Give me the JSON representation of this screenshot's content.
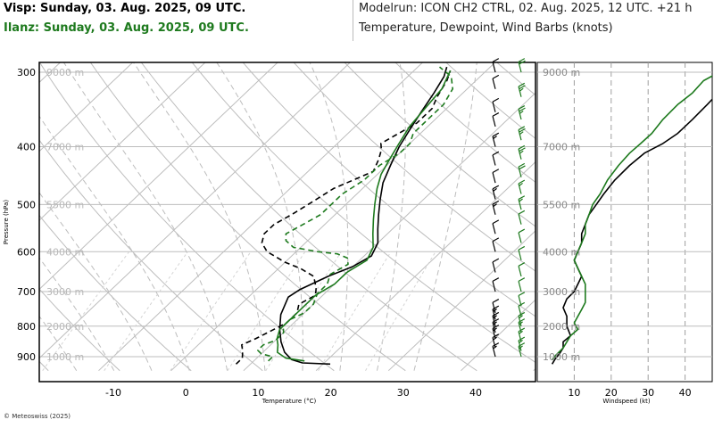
{
  "header": {
    "left_line1": "Visp: Sunday, 03. Aug. 2025, 09 UTC.",
    "left_line2": "Ilanz: Sunday, 03. Aug. 2025, 09 UTC.",
    "right_line1": "Modelrun: ICON CH2 CTRL, 02. Aug. 2025, 12 UTC. +21 h",
    "right_line2": "Temperature, Dewpoint, Wind Barbs (knots)"
  },
  "footer": {
    "copyright": "© Meteoswiss (2025)"
  },
  "colors": {
    "visp": "#000000",
    "ilanz": "#1e7a1e",
    "grid": "#bdbdbd",
    "frame": "#000000"
  },
  "chart_data": [
    {
      "type": "line",
      "title": "",
      "xlabel": "Temperature (°C)",
      "ylabel": "Pressure (hPa)",
      "y_scale": "log",
      "xlim": [
        -20,
        48
      ],
      "ylim": [
        950,
        290
      ],
      "x_ticks": [
        "-10",
        "0",
        "10",
        "20",
        "30",
        "40"
      ],
      "pressure_ticks": [
        "300",
        "400",
        "500",
        "600",
        "700",
        "800",
        "900"
      ],
      "height_labels": [
        "9000 m",
        "7000 m",
        "5500 m",
        "4000 m",
        "3000 m",
        "2000 m",
        "1000 m"
      ],
      "series": [
        {
          "id": "visp_temperature",
          "station": "Visp",
          "kind": "temperature",
          "style": "solid",
          "points": [
            [
              21,
              926
            ],
            [
              17,
              922
            ],
            [
              15,
              910
            ],
            [
              13,
              885
            ],
            [
              11,
              850
            ],
            [
              9,
              810
            ],
            [
              7,
              765
            ],
            [
              5.5,
              715
            ],
            [
              6,
              695
            ],
            [
              8,
              660
            ],
            [
              10,
              635
            ],
            [
              11,
              610
            ],
            [
              10,
              580
            ],
            [
              8,
              550
            ],
            [
              6,
              520
            ],
            [
              4,
              490
            ],
            [
              2,
              460
            ],
            [
              0.5,
              430
            ],
            [
              -1,
              400
            ],
            [
              -2,
              375
            ],
            [
              -3,
              350
            ],
            [
              -4,
              325
            ],
            [
              -5,
              305
            ],
            [
              -6,
              294
            ]
          ]
        },
        {
          "id": "visp_dewpoint",
          "station": "Visp",
          "kind": "dewpoint",
          "style": "dashed",
          "points": [
            [
              8,
              926
            ],
            [
              8,
              905
            ],
            [
              7,
              880
            ],
            [
              6,
              860
            ],
            [
              7,
              840
            ],
            [
              8,
              815
            ],
            [
              9,
              790
            ],
            [
              9,
              760
            ],
            [
              8,
              735
            ],
            [
              9,
              710
            ],
            [
              8,
              690
            ],
            [
              6,
              660
            ],
            [
              3,
              640
            ],
            [
              0,
              625
            ],
            [
              -4,
              600
            ],
            [
              -6,
              580
            ],
            [
              -7,
              560
            ],
            [
              -7,
              540
            ],
            [
              -6,
              520
            ],
            [
              -5,
              495
            ],
            [
              -4,
              470
            ],
            [
              -1,
              440
            ],
            [
              -2,
              420
            ],
            [
              -3,
              405
            ],
            [
              -4,
              395
            ],
            [
              -3,
              380
            ],
            [
              -2,
              365
            ],
            [
              -2,
              345
            ],
            [
              -3,
              330
            ],
            [
              -4,
              310
            ],
            [
              -5,
              298
            ]
          ]
        },
        {
          "id": "ilanz_temperature",
          "station": "Ilanz",
          "kind": "temperature",
          "style": "solid",
          "points": [
            [
              17,
              915
            ],
            [
              14,
              905
            ],
            [
              12,
              885
            ],
            [
              11,
              860
            ],
            [
              10,
              840
            ],
            [
              9,
              810
            ],
            [
              9,
              785
            ],
            [
              9,
              760
            ],
            [
              9,
              735
            ],
            [
              9,
              710
            ],
            [
              10,
              680
            ],
            [
              10,
              650
            ],
            [
              11,
              620
            ],
            [
              10,
              590
            ],
            [
              8,
              560
            ],
            [
              6,
              530
            ],
            [
              4,
              500
            ],
            [
              2,
              470
            ],
            [
              0.5,
              445
            ],
            [
              -0.5,
              420
            ],
            [
              -1.5,
              395
            ],
            [
              -2.5,
              370
            ],
            [
              -3,
              345
            ],
            [
              -3.5,
              320
            ],
            [
              -5,
              298
            ]
          ]
        },
        {
          "id": "ilanz_dewpoint",
          "station": "Ilanz",
          "kind": "dewpoint",
          "style": "dashed",
          "points": [
            [
              12,
              915
            ],
            [
              12,
              900
            ],
            [
              10,
              890
            ],
            [
              9,
              878
            ],
            [
              9,
              860
            ],
            [
              10,
              845
            ],
            [
              10,
              820
            ],
            [
              9,
              800
            ],
            [
              9,
              780
            ],
            [
              10,
              760
            ],
            [
              10,
              735
            ],
            [
              9,
              705
            ],
            [
              9,
              680
            ],
            [
              8,
              655
            ],
            [
              9,
              630
            ],
            [
              8,
              615
            ],
            [
              6,
              605
            ],
            [
              3,
              600
            ],
            [
              -1,
              590
            ],
            [
              -3,
              575
            ],
            [
              -4,
              560
            ],
            [
              -3,
              540
            ],
            [
              -2,
              520
            ],
            [
              -2,
              500
            ],
            [
              -2,
              480
            ],
            [
              -1,
              455
            ],
            [
              -1,
              430
            ],
            [
              0,
              410
            ],
            [
              0,
              395
            ],
            [
              -1,
              380
            ],
            [
              -1,
              360
            ],
            [
              -1,
              340
            ],
            [
              -2,
              320
            ],
            [
              -4,
              305
            ],
            [
              -7,
              294
            ]
          ]
        }
      ],
      "wind_barbs_kt": {
        "visp": [
          [
            900,
            15
          ],
          [
            870,
            15
          ],
          [
            840,
            15
          ],
          [
            820,
            15
          ],
          [
            800,
            15
          ],
          [
            780,
            15
          ],
          [
            760,
            10
          ],
          [
            700,
            10
          ],
          [
            650,
            10
          ],
          [
            600,
            10
          ],
          [
            560,
            10
          ],
          [
            520,
            15
          ],
          [
            490,
            15
          ],
          [
            460,
            10
          ],
          [
            430,
            10
          ],
          [
            400,
            15
          ],
          [
            370,
            10
          ],
          [
            350,
            10
          ],
          [
            320,
            10
          ],
          [
            300,
            10
          ]
        ],
        "ilanz": [
          [
            900,
            15
          ],
          [
            880,
            15
          ],
          [
            850,
            15
          ],
          [
            820,
            15
          ],
          [
            800,
            15
          ],
          [
            770,
            10
          ],
          [
            740,
            10
          ],
          [
            700,
            10
          ],
          [
            660,
            10
          ],
          [
            620,
            10
          ],
          [
            580,
            10
          ],
          [
            540,
            10
          ],
          [
            510,
            15
          ],
          [
            480,
            15
          ],
          [
            450,
            20
          ],
          [
            420,
            25
          ],
          [
            390,
            25
          ],
          [
            360,
            25
          ],
          [
            330,
            25
          ],
          [
            300,
            20
          ]
        ]
      }
    },
    {
      "type": "line",
      "title": "",
      "xlabel": "Windspeed (kt)",
      "ylabel": "",
      "y_scale": "log",
      "xlim": [
        0,
        50
      ],
      "ylim": [
        950,
        290
      ],
      "x_ticks": [
        "10",
        "20",
        "30",
        "40"
      ],
      "height_labels": [
        "9000 m",
        "7000 m",
        "5500 m",
        "4000 m",
        "3000 m",
        "2000 m",
        "1000 m"
      ],
      "series": [
        {
          "id": "visp_windspeed",
          "station": "Visp",
          "style": "solid",
          "points": [
            [
              4,
              926
            ],
            [
              5,
              905
            ],
            [
              6,
              890
            ],
            [
              7,
              870
            ],
            [
              7,
              850
            ],
            [
              9,
              830
            ],
            [
              8,
              800
            ],
            [
              8,
              770
            ],
            [
              7,
              745
            ],
            [
              8,
              720
            ],
            [
              10,
              700
            ],
            [
              11,
              680
            ],
            [
              12,
              660
            ],
            [
              11,
              640
            ],
            [
              10,
              620
            ],
            [
              11,
              600
            ],
            [
              12,
              580
            ],
            [
              12,
              560
            ],
            [
              13,
              540
            ],
            [
              14,
              520
            ],
            [
              16,
              500
            ],
            [
              18,
              480
            ],
            [
              21,
              455
            ],
            [
              25,
              430
            ],
            [
              29,
              410
            ],
            [
              34,
              395
            ],
            [
              38,
              380
            ],
            [
              42,
              360
            ],
            [
              46,
              340
            ],
            [
              50,
              320
            ]
          ]
        },
        {
          "id": "ilanz_windspeed",
          "station": "Ilanz",
          "style": "solid",
          "points": [
            [
              4,
              912
            ],
            [
              5,
              895
            ],
            [
              7,
              870
            ],
            [
              8,
              850
            ],
            [
              9,
              830
            ],
            [
              11,
              810
            ],
            [
              10,
              790
            ],
            [
              11,
              770
            ],
            [
              12,
              750
            ],
            [
              13,
              730
            ],
            [
              13,
              700
            ],
            [
              13,
              680
            ],
            [
              12,
              660
            ],
            [
              11,
              640
            ],
            [
              10,
              620
            ],
            [
              11,
              600
            ],
            [
              12,
              580
            ],
            [
              13,
              560
            ],
            [
              13,
              540
            ],
            [
              14,
              520
            ],
            [
              15,
              500
            ],
            [
              17,
              480
            ],
            [
              19,
              455
            ],
            [
              22,
              430
            ],
            [
              25,
              410
            ],
            [
              28,
              395
            ],
            [
              31,
              380
            ],
            [
              34,
              360
            ],
            [
              38,
              340
            ],
            [
              42,
              325
            ],
            [
              45,
              310
            ],
            [
              50,
              298
            ]
          ]
        }
      ]
    }
  ]
}
